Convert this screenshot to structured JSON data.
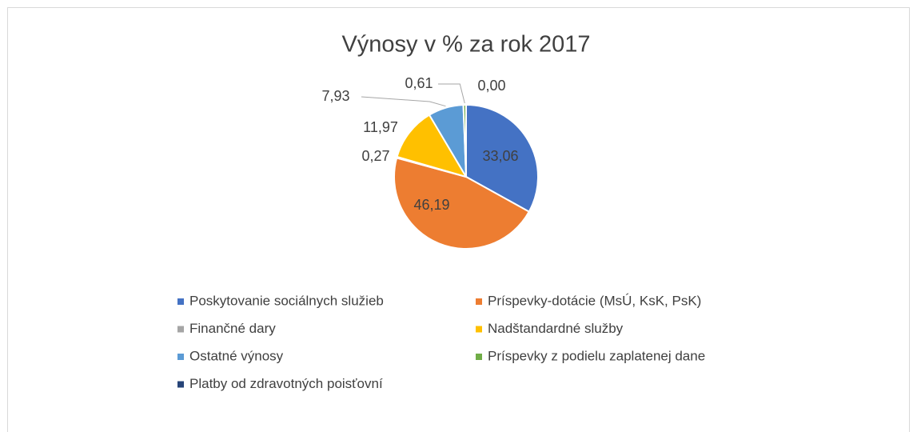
{
  "chart_data": {
    "type": "pie",
    "title": "Výnosy v % za rok 2017",
    "categories": [
      "Poskytovanie sociálnych služieb",
      "Príspevky-dotácie (MsÚ, KsK, PsK)",
      "Finančné dary",
      "Nadštandardné služby",
      "Ostatné výnosy",
      "Príspevky z podielu zaplatenej dane",
      "Platby od zdravotných poisťovní"
    ],
    "values": [
      33.06,
      46.19,
      0.27,
      11.97,
      7.93,
      0.61,
      0.0
    ],
    "value_labels": [
      "33,06",
      "46,19",
      "0,27",
      "11,97",
      "7,93",
      "0,61",
      "0,00"
    ],
    "colors": [
      "#4472c4",
      "#ed7d31",
      "#a5a5a5",
      "#ffc000",
      "#5b9bd5",
      "#70ad47",
      "#264478"
    ],
    "legend": "bottom"
  }
}
